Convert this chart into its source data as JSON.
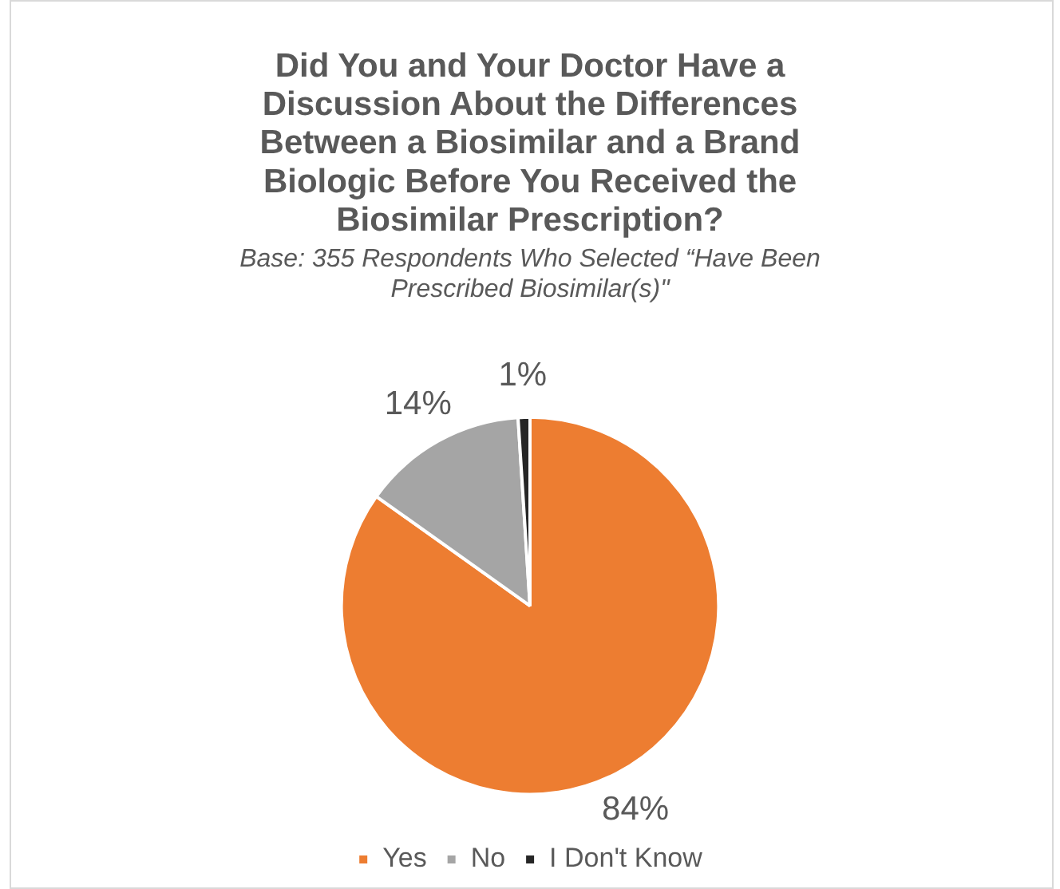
{
  "chart_data": {
    "type": "pie",
    "title": "Did You and Your Doctor Have a Discussion About the Differences Between a Biosimilar and a Brand Biologic Before You Received the Biosimilar Prescription?",
    "subtitle": "Base: 355 Respondents Who Selected “Have Been Prescribed Biosimilar(s)\"",
    "categories": [
      "Yes",
      "No",
      "I Don't Know"
    ],
    "values": [
      84,
      14,
      1
    ],
    "value_labels": [
      "84%",
      "14%",
      "1%"
    ],
    "colors": [
      "#ed7d31",
      "#a5a5a5",
      "#262626"
    ],
    "legend": "bottom"
  }
}
